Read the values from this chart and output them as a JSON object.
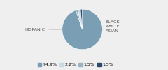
{
  "labels": [
    "HISPANIC",
    "BLACK",
    "WHITE",
    "ASIAN"
  ],
  "values": [
    94.9,
    1.5,
    2.2,
    1.5
  ],
  "colors": [
    "#7a9fb5",
    "#9ab5c4",
    "#c8dae4",
    "#2c4a6e"
  ],
  "legend_labels": [
    "94.9%",
    "2.2%",
    "1.5%",
    "1.5%"
  ],
  "legend_colors": [
    "#7a9fb5",
    "#c8dae4",
    "#9ab5c4",
    "#2c4a6e"
  ],
  "startangle": 90,
  "bg_color": "#efefef"
}
